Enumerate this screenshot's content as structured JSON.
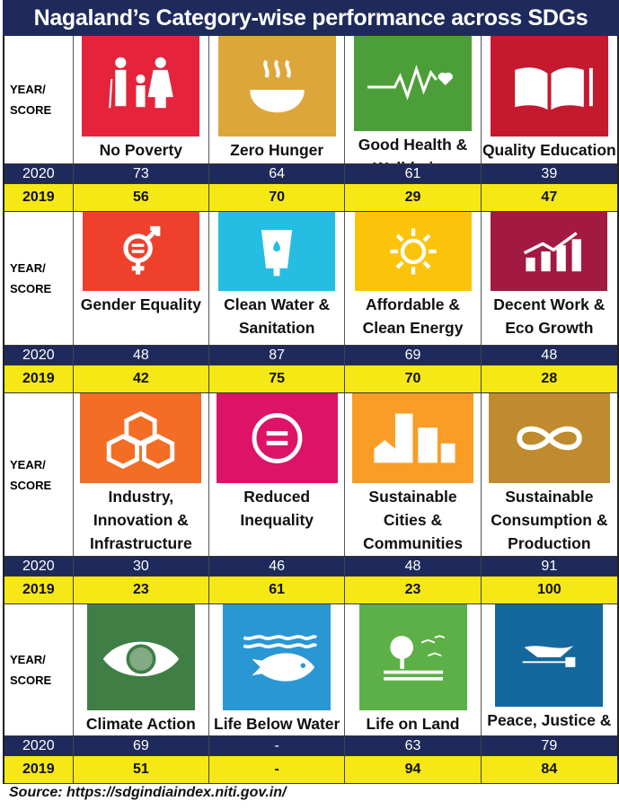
{
  "title": "Nagaland’s Category-wise performance across SDGs",
  "row_label": [
    "YEAR/",
    "SCORE"
  ],
  "years": [
    "2020",
    "2019"
  ],
  "sections": [
    {
      "goals": [
        {
          "name": "No Poverty",
          "icon": "family-icon",
          "color": "#e5243b",
          "y2020": "73",
          "y2019": "56"
        },
        {
          "name": "Zero Hunger",
          "icon": "bowl-icon",
          "color": "#dda63a",
          "y2020": "64",
          "y2019": "70"
        },
        {
          "name": "Good Health & Well-being",
          "icon": "heartbeat-icon",
          "color": "#4c9f38",
          "y2020": "61",
          "y2019": "29"
        },
        {
          "name": "Quality Education",
          "icon": "book-icon",
          "color": "#c5192d",
          "y2020": "39",
          "y2019": "47"
        }
      ]
    },
    {
      "goals": [
        {
          "name": "Gender Equality",
          "icon": "gender-icon",
          "color": "#ef402b",
          "y2020": "48",
          "y2019": "42"
        },
        {
          "name": "Clean Water & Sanitation",
          "icon": "water-icon",
          "color": "#26bde2",
          "y2020": "87",
          "y2019": "75"
        },
        {
          "name": "Affordable & Clean Energy",
          "icon": "sun-icon",
          "color": "#fcc30b",
          "y2020": "69",
          "y2019": "70"
        },
        {
          "name": "Decent Work & Eco Growth",
          "icon": "growth-chart-icon",
          "color": "#a21942",
          "y2020": "48",
          "y2019": "28"
        }
      ]
    },
    {
      "goals": [
        {
          "name": "Industry, Innovation & Infrastructure",
          "icon": "cubes-icon",
          "color": "#f36d25",
          "y2020": "30",
          "y2019": "23"
        },
        {
          "name": "Reduced Inequality",
          "icon": "equal-icon",
          "color": "#dd1367",
          "y2020": "46",
          "y2019": "61"
        },
        {
          "name": "Sustainable Cities & Communities",
          "icon": "city-icon",
          "color": "#f99d26",
          "y2020": "48",
          "y2019": "23"
        },
        {
          "name": "Sustainable Consumption & Production",
          "icon": "infinity-icon",
          "color": "#bf8b2e",
          "y2020": "91",
          "y2019": "100"
        }
      ]
    },
    {
      "goals": [
        {
          "name": "Climate Action",
          "icon": "eye-globe-icon",
          "color": "#3f7e44",
          "y2020": "69",
          "y2019": "51"
        },
        {
          "name": "Life Below Water",
          "icon": "fish-icon",
          "color": "#2a97d5",
          "y2020": "-",
          "y2019": "-"
        },
        {
          "name": "Life on Land",
          "icon": "tree-icon",
          "color": "#5db047",
          "y2020": "63",
          "y2019": "94"
        },
        {
          "name": "Peace, Justice & Strong Institutions",
          "icon": "dove-icon",
          "color": "#14689d",
          "y2020": "79",
          "y2019": "84"
        }
      ]
    }
  ],
  "source": "Source: https://sdgindiaindex.niti.gov.in/"
}
